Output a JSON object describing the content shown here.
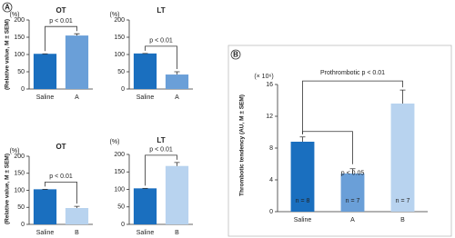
{
  "chart_data": [
    {
      "type": "bar",
      "panel": "A",
      "title": "OT",
      "unit_label": "(%)",
      "y_label": "(Relative value, M ± SEM)",
      "categories": [
        "Saline",
        "A"
      ],
      "values": [
        102,
        155
      ],
      "errors": [
        0,
        5
      ],
      "colors": [
        "#1a6fbf",
        "#6a9fd8"
      ],
      "ylim": [
        0,
        200
      ],
      "yticks": [
        0,
        50,
        100,
        150,
        200
      ],
      "annotations": [
        "p < 0.01"
      ]
    },
    {
      "type": "bar",
      "title": "LT",
      "unit_label": "(%)",
      "categories": [
        "Saline",
        "A"
      ],
      "values": [
        103,
        42
      ],
      "errors": [
        0,
        8
      ],
      "colors": [
        "#1a6fbf",
        "#6a9fd8"
      ],
      "ylim": [
        0,
        200
      ],
      "yticks": [
        0,
        50,
        100,
        150,
        200
      ],
      "annotations": [
        "p < 0.01"
      ]
    },
    {
      "type": "bar",
      "title": "OT",
      "unit_label": "(%)",
      "y_label": "(Relative value, M ± SEM)",
      "categories": [
        "Saline",
        "B"
      ],
      "values": [
        103,
        48
      ],
      "errors": [
        0,
        5
      ],
      "colors": [
        "#1a6fbf",
        "#b8d3ef"
      ],
      "ylim": [
        0,
        200
      ],
      "yticks": [
        0,
        50,
        100,
        150,
        200
      ],
      "annotations": [
        "p < 0.01"
      ]
    },
    {
      "type": "bar",
      "title": "LT",
      "unit_label": "(%)",
      "categories": [
        "Saline",
        "B"
      ],
      "values": [
        103,
        167
      ],
      "errors": [
        0,
        10
      ],
      "colors": [
        "#1a6fbf",
        "#b8d3ef"
      ],
      "ylim": [
        0,
        200
      ],
      "yticks": [
        0,
        50,
        100,
        150,
        200
      ],
      "annotations": [
        "p < 0.01"
      ]
    },
    {
      "type": "bar",
      "panel": "B",
      "unit_label": "(× 10⁶)",
      "y_label": "Thrombotic tendency (AU, M ± SEM)",
      "categories": [
        "Saline",
        "A",
        "B"
      ],
      "values": [
        8.8,
        4.8,
        13.6
      ],
      "errors": [
        0.6,
        0.6,
        1.7
      ],
      "bar_labels": [
        "n = 8",
        "n = 7",
        "n = 7"
      ],
      "colors": [
        "#1a6fbf",
        "#6a9fd8",
        "#b8d3ef"
      ],
      "ylim": [
        0,
        16
      ],
      "yticks": [
        0,
        4,
        8,
        12,
        16
      ],
      "annotations": [
        "Prothrombotic p < 0.01",
        "p < 0.05"
      ]
    }
  ]
}
